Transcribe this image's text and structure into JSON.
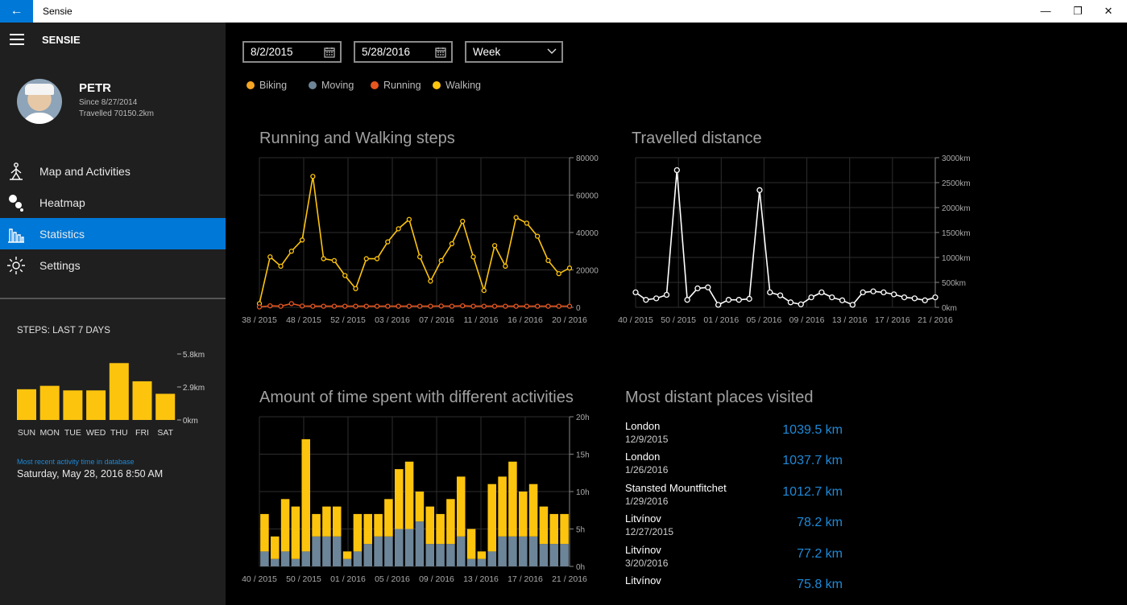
{
  "window": {
    "title": "Sensie",
    "back": "←",
    "minimize": "—",
    "restore": "❐",
    "close": "✕"
  },
  "app": {
    "name": "SENSIE"
  },
  "user": {
    "name": "PETR",
    "since": "Since 8/27/2014",
    "travelled": "Travelled 70150.2km"
  },
  "nav": [
    {
      "label": "Map and Activities",
      "icon": "person-walking-icon"
    },
    {
      "label": "Heatmap",
      "icon": "heatmap-icon"
    },
    {
      "label": "Statistics",
      "icon": "bar-chart-icon"
    },
    {
      "label": "Settings",
      "icon": "gear-icon"
    }
  ],
  "steps_widget": {
    "title": "STEPS: LAST 7 DAYS",
    "days": [
      "SUN",
      "MON",
      "TUE",
      "WED",
      "THU",
      "FRI",
      "SAT"
    ],
    "values": [
      2.7,
      3.0,
      2.6,
      2.6,
      5.0,
      3.4,
      2.3
    ],
    "ticks": [
      "5.8km",
      "2.9km",
      "0km"
    ],
    "max": 5.8
  },
  "recent": {
    "label": "Most recent activity time in database",
    "value": "Saturday, May 28, 2016 8:50 AM"
  },
  "filters": {
    "from_date": "8/2/2015",
    "to_date": "5/28/2016",
    "period": "Week"
  },
  "legend": [
    {
      "label": "Biking",
      "color": "#f5a623"
    },
    {
      "label": "Moving",
      "color": "#6d8598"
    },
    {
      "label": "Running",
      "color": "#e8561f"
    },
    {
      "label": "Walking",
      "color": "#fdc40e"
    }
  ],
  "charts": {
    "steps": {
      "title": "Running and Walking steps"
    },
    "distance": {
      "title": "Travelled distance"
    },
    "time": {
      "title": "Amount of time spent with different activities"
    }
  },
  "chart_data": [
    {
      "type": "line",
      "title": "Running and Walking steps",
      "xticks": [
        "38 / 2015",
        "48 / 2015",
        "52 / 2015",
        "03 / 2016",
        "07 / 2016",
        "11 / 2016",
        "16 / 2016",
        "20 / 2016"
      ],
      "yticks": [
        "80000",
        "60000",
        "40000",
        "20000",
        "0"
      ],
      "ylim": [
        0,
        80000
      ],
      "series": [
        {
          "name": "Walking",
          "color": "#fdc40e",
          "values": [
            2000,
            27000,
            22000,
            30000,
            36000,
            70000,
            26000,
            25000,
            17000,
            10000,
            26000,
            26000,
            35000,
            42000,
            47000,
            27000,
            14000,
            25000,
            34000,
            46000,
            27000,
            9000,
            33000,
            22000,
            48000,
            45000,
            38000,
            25000,
            18000,
            21000
          ]
        },
        {
          "name": "Running",
          "color": "#e8561f",
          "values": [
            200,
            800,
            600,
            2000,
            700,
            600,
            600,
            600,
            600,
            600,
            600,
            600,
            600,
            600,
            600,
            600,
            600,
            700,
            600,
            800,
            600,
            600,
            600,
            600,
            600,
            600,
            600,
            600,
            600,
            600
          ]
        }
      ]
    },
    {
      "type": "line",
      "title": "Travelled distance",
      "xticks": [
        "40 / 2015",
        "50 / 2015",
        "01 / 2016",
        "05 / 2016",
        "09 / 2016",
        "13 / 2016",
        "17 / 2016",
        "21 / 2016"
      ],
      "yticks": [
        "3000km",
        "2500km",
        "2000km",
        "1500km",
        "1000km",
        "500km",
        "0km"
      ],
      "ylim": [
        0,
        3000
      ],
      "series": [
        {
          "name": "",
          "color": "#ffffff",
          "values": [
            300,
            150,
            180,
            250,
            2750,
            150,
            380,
            400,
            50,
            150,
            150,
            170,
            2350,
            300,
            240,
            100,
            60,
            200,
            300,
            200,
            140,
            50,
            300,
            320,
            300,
            260,
            200,
            180,
            140,
            200
          ]
        }
      ]
    },
    {
      "type": "bar",
      "title": "Amount of time spent with different activities",
      "xticks": [
        "40 / 2015",
        "50 / 2015",
        "01 / 2016",
        "05 / 2016",
        "09 / 2016",
        "13 / 2016",
        "17 / 2016",
        "21 / 2016"
      ],
      "yticks": [
        "20h",
        "15h",
        "10h",
        "5h",
        "0h"
      ],
      "ylim": [
        0,
        20
      ],
      "series": [
        {
          "name": "Moving",
          "color": "#6d8598",
          "values": [
            2,
            1,
            2,
            1,
            2,
            4,
            4,
            4,
            1,
            2,
            3,
            4,
            4,
            5,
            5,
            6,
            3,
            3,
            3,
            4,
            1,
            1,
            2,
            4,
            4,
            4,
            4,
            3,
            3,
            3
          ]
        },
        {
          "name": "Walking",
          "color": "#fdc40e",
          "values": [
            5,
            3,
            7,
            7,
            15,
            3,
            4,
            4,
            1,
            5,
            4,
            3,
            5,
            8,
            9,
            4,
            5,
            4,
            6,
            8,
            4,
            1,
            9,
            8,
            10,
            6,
            7,
            5,
            4,
            4
          ]
        }
      ]
    }
  ],
  "places": {
    "title": "Most distant places visited",
    "items": [
      {
        "name": "London",
        "date": "12/9/2015",
        "distance": "1039.5 km"
      },
      {
        "name": "London",
        "date": "1/26/2016",
        "distance": "1037.7 km"
      },
      {
        "name": "Stansted Mountfitchet",
        "date": "1/29/2016",
        "distance": "1012.7 km"
      },
      {
        "name": "Litvínov",
        "date": "12/27/2015",
        "distance": "78.2 km"
      },
      {
        "name": "Litvínov",
        "date": "3/20/2016",
        "distance": "77.2 km"
      },
      {
        "name": "Litvínov",
        "date": "",
        "distance": "75.8 km"
      }
    ]
  }
}
